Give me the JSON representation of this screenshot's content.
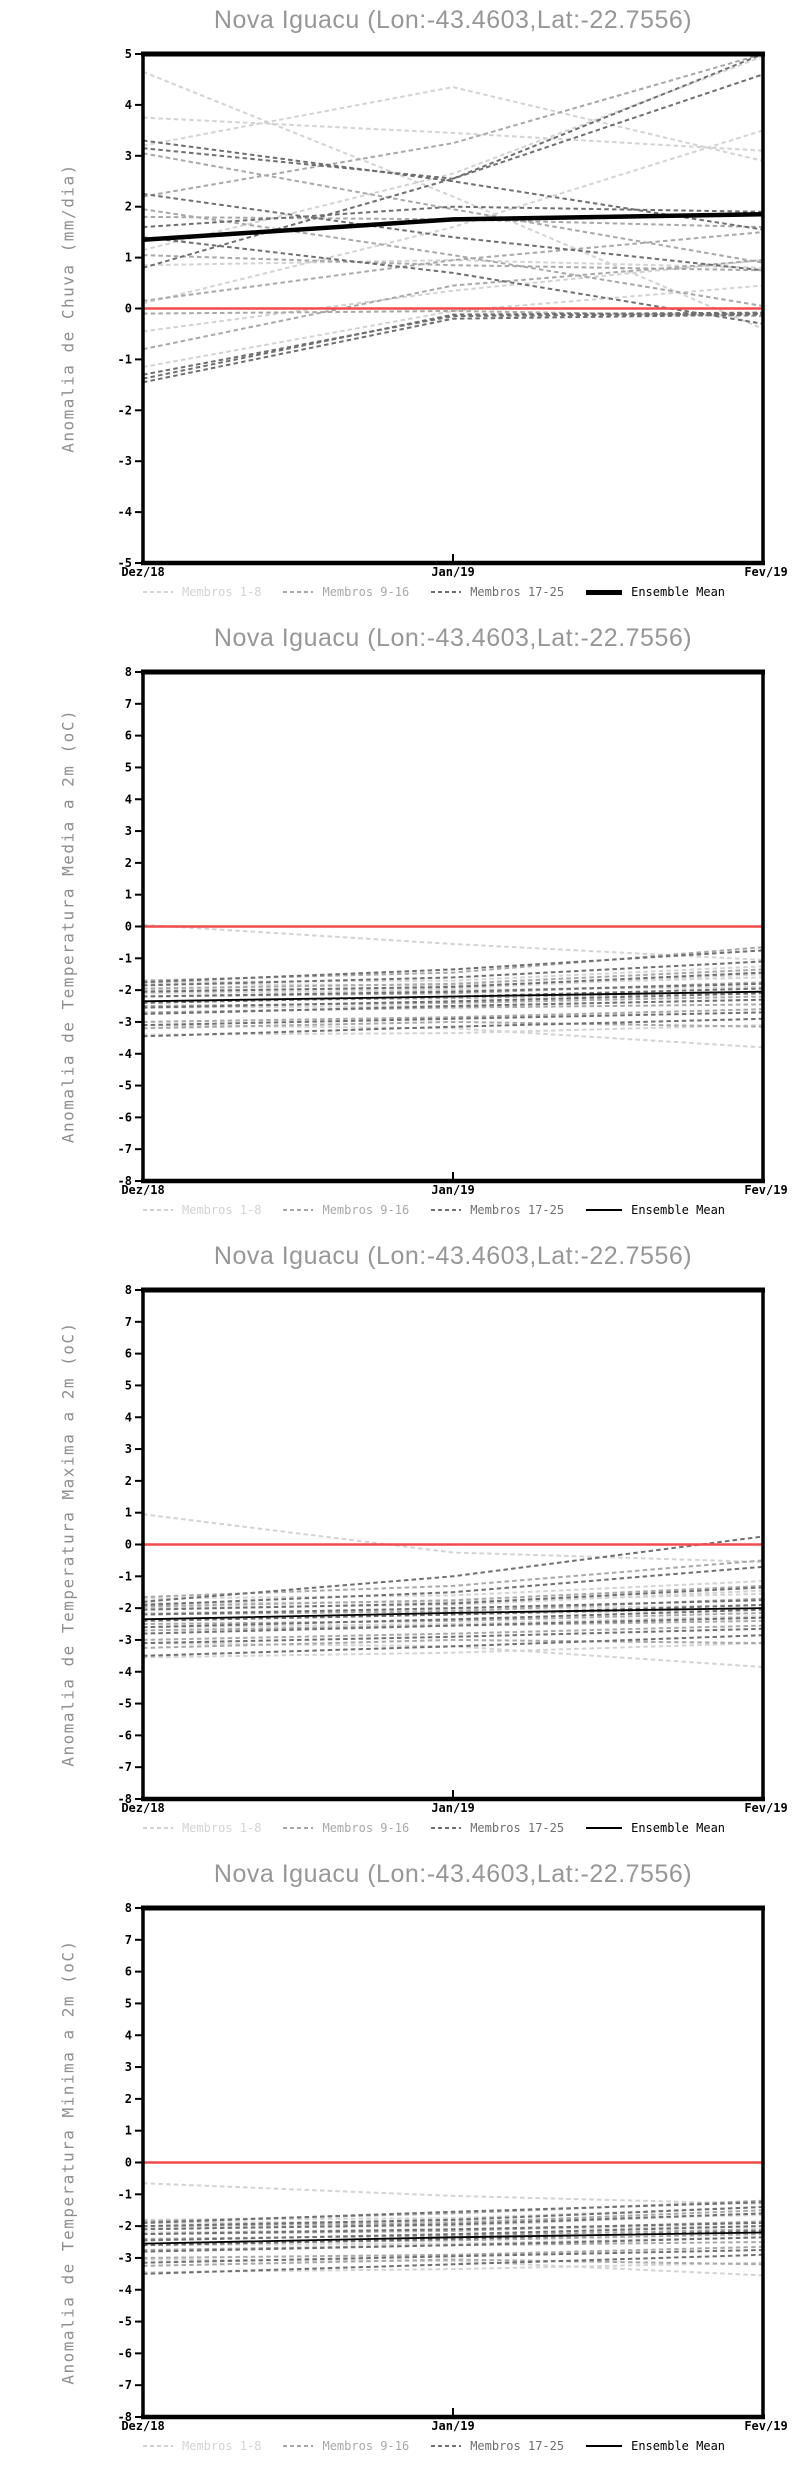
{
  "page": {
    "background": "#ffffff"
  },
  "style": {
    "frame_color": "#000000",
    "title_color": "#979797",
    "axis_label_color": "#8f8f8f",
    "tick_label_color": "#000000",
    "zero_line_color": "#f14b4b",
    "group_colors": [
      "#d3d3d3",
      "#a8a8a8",
      "#6f6f6f"
    ],
    "mean_color": "#000000"
  },
  "chart_data": [
    {
      "type": "line",
      "title": "Nova Iguacu (Lon:-43.4603,Lat:-22.7556)",
      "ylabel": "Anomalia de Chuva (mm/dia)",
      "x_categories": [
        "Dez/18",
        "Jan/19",
        "Fev/19"
      ],
      "ylim": [
        -5,
        5
      ],
      "ytick_step": 1,
      "grid": false,
      "legend_position": "bottom",
      "zero_line": {
        "value": 0,
        "color": "#f14b4b"
      },
      "groups": [
        {
          "name": "Membros 1-8",
          "color": "#d3d3d3",
          "style": "dashed",
          "members": [
            [
              4.65,
              2.2,
              -0.4
            ],
            [
              3.75,
              3.45,
              3.1
            ],
            [
              1.15,
              2.65,
              4.95
            ],
            [
              0.85,
              0.95,
              0.8
            ],
            [
              0.1,
              1.6,
              3.5
            ],
            [
              -0.45,
              0.35,
              0.95
            ],
            [
              -1.15,
              -0.05,
              0.45
            ],
            [
              3.2,
              4.35,
              2.9
            ]
          ]
        },
        {
          "name": "Membros 9-16",
          "color": "#a8a8a8",
          "style": "dashed",
          "members": [
            [
              2.2,
              3.25,
              5.0
            ],
            [
              1.95,
              1.05,
              0.05
            ],
            [
              1.8,
              1.75,
              1.6
            ],
            [
              1.05,
              0.85,
              0.75
            ],
            [
              0.15,
              0.95,
              1.5
            ],
            [
              -0.1,
              -0.05,
              -0.15
            ],
            [
              -0.8,
              0.45,
              0.95
            ],
            [
              3.05,
              1.95,
              0.9
            ]
          ]
        },
        {
          "name": "Membros 17-25",
          "color": "#6f6f6f",
          "style": "dashed",
          "members": [
            [
              3.3,
              2.5,
              1.55
            ],
            [
              3.15,
              2.55,
              4.6
            ],
            [
              2.25,
              1.4,
              0.75
            ],
            [
              1.6,
              2.0,
              1.9
            ],
            [
              1.4,
              0.7,
              -0.3
            ],
            [
              -1.3,
              -0.15,
              -0.1
            ],
            [
              -1.38,
              -0.12,
              -0.08
            ],
            [
              -1.45,
              -0.2,
              -0.12
            ],
            [
              0.8,
              2.55,
              5.0
            ]
          ]
        }
      ],
      "mean": {
        "name": "Ensemble Mean",
        "color": "#000000",
        "width": 4.5,
        "values": [
          1.35,
          1.75,
          1.85
        ]
      }
    },
    {
      "type": "line",
      "title": "Nova Iguacu (Lon:-43.4603,Lat:-22.7556)",
      "ylabel": "Anomalia de Temperatura Media a 2m (oC)",
      "x_categories": [
        "Dez/18",
        "Jan/19",
        "Fev/19"
      ],
      "ylim": [
        -8,
        8
      ],
      "ytick_step": 1,
      "grid": false,
      "legend_position": "bottom",
      "zero_line": {
        "value": 0,
        "color": "#f14b4b"
      },
      "groups": [
        {
          "name": "Membros 1-8",
          "color": "#d3d3d3",
          "style": "dashed",
          "members": [
            [
              0.05,
              -0.55,
              -1.05
            ],
            [
              -1.75,
              -1.7,
              -1.25
            ],
            [
              -1.8,
              -1.85,
              -1.6
            ],
            [
              -2.0,
              -1.95,
              -1.5
            ],
            [
              -2.1,
              -2.0,
              -1.9
            ],
            [
              -2.55,
              -2.5,
              -2.3
            ],
            [
              -3.1,
              -3.2,
              -3.8
            ],
            [
              -3.4,
              -3.35,
              -3.1
            ]
          ]
        },
        {
          "name": "Membros 9-16",
          "color": "#a8a8a8",
          "style": "dashed",
          "members": [
            [
              -1.7,
              -1.45,
              -0.65
            ],
            [
              -1.95,
              -1.8,
              -1.35
            ],
            [
              -2.2,
              -2.1,
              -1.75
            ],
            [
              -2.35,
              -2.25,
              -2.05
            ],
            [
              -2.5,
              -2.4,
              -2.2
            ],
            [
              -2.7,
              -2.55,
              -2.45
            ],
            [
              -3.0,
              -2.85,
              -2.6
            ],
            [
              -3.2,
              -3.0,
              -3.15
            ]
          ]
        },
        {
          "name": "Membros 17-25",
          "color": "#6f6f6f",
          "style": "dashed",
          "members": [
            [
              -1.75,
              -1.35,
              -0.75
            ],
            [
              -1.85,
              -1.6,
              -1.1
            ],
            [
              -2.05,
              -1.9,
              -1.45
            ],
            [
              -2.2,
              -2.05,
              -1.8
            ],
            [
              -2.4,
              -2.2,
              -1.95
            ],
            [
              -2.55,
              -2.35,
              -2.1
            ],
            [
              -2.75,
              -2.5,
              -2.3
            ],
            [
              -3.1,
              -2.9,
              -2.7
            ],
            [
              -3.45,
              -3.15,
              -2.9
            ]
          ]
        }
      ],
      "mean": {
        "name": "Ensemble Mean",
        "color": "#000000",
        "width": 1.8,
        "values": [
          -2.35,
          -2.2,
          -2.05
        ]
      }
    },
    {
      "type": "line",
      "title": "Nova Iguacu (Lon:-43.4603,Lat:-22.7556)",
      "ylabel": "Anomalia de Temperatura Maxima a 2m (oC)",
      "x_categories": [
        "Dez/18",
        "Jan/19",
        "Fev/19"
      ],
      "ylim": [
        -8,
        8
      ],
      "ytick_step": 1,
      "grid": false,
      "legend_position": "bottom",
      "zero_line": {
        "value": 0,
        "color": "#f14b4b"
      },
      "groups": [
        {
          "name": "Membros 1-8",
          "color": "#d3d3d3",
          "style": "dashed",
          "members": [
            [
              0.95,
              -0.25,
              -0.55
            ],
            [
              -1.7,
              -1.6,
              -1.15
            ],
            [
              -1.85,
              -1.8,
              -1.55
            ],
            [
              -2.0,
              -1.9,
              -1.45
            ],
            [
              -2.15,
              -2.05,
              -1.9
            ],
            [
              -2.6,
              -2.5,
              -2.25
            ],
            [
              -3.1,
              -3.2,
              -3.85
            ],
            [
              -3.55,
              -3.4,
              -3.1
            ]
          ]
        },
        {
          "name": "Membros 9-16",
          "color": "#a8a8a8",
          "style": "dashed",
          "members": [
            [
              -1.65,
              -1.3,
              -0.5
            ],
            [
              -1.95,
              -1.75,
              -1.3
            ],
            [
              -2.2,
              -2.1,
              -1.7
            ],
            [
              -2.35,
              -2.2,
              -2.0
            ],
            [
              -2.5,
              -2.4,
              -2.15
            ],
            [
              -2.7,
              -2.55,
              -2.4
            ],
            [
              -3.0,
              -2.8,
              -2.55
            ],
            [
              -3.25,
              -3.0,
              -3.1
            ]
          ]
        },
        {
          "name": "Membros 17-25",
          "color": "#6f6f6f",
          "style": "dashed",
          "members": [
            [
              -1.8,
              -1.0,
              0.25
            ],
            [
              -1.9,
              -1.5,
              -0.7
            ],
            [
              -2.05,
              -1.85,
              -1.35
            ],
            [
              -2.2,
              -2.0,
              -1.75
            ],
            [
              -2.4,
              -2.2,
              -1.9
            ],
            [
              -2.6,
              -2.35,
              -2.05
            ],
            [
              -2.8,
              -2.55,
              -2.3
            ],
            [
              -3.1,
              -2.9,
              -2.65
            ],
            [
              -3.5,
              -3.2,
              -2.85
            ]
          ]
        }
      ],
      "mean": {
        "name": "Ensemble Mean",
        "color": "#000000",
        "width": 1.8,
        "values": [
          -2.35,
          -2.15,
          -2.0
        ]
      }
    },
    {
      "type": "line",
      "title": "Nova Iguacu (Lon:-43.4603,Lat:-22.7556)",
      "ylabel": "Anomalia de Temperatura Minima a 2m (oC)",
      "x_categories": [
        "Dez/18",
        "Jan/19",
        "Fev/19"
      ],
      "ylim": [
        -8,
        8
      ],
      "ytick_step": 1,
      "grid": false,
      "legend_position": "bottom",
      "zero_line": {
        "value": 0,
        "color": "#f14b4b"
      },
      "groups": [
        {
          "name": "Membros 1-8",
          "color": "#d3d3d3",
          "style": "dashed",
          "members": [
            [
              -0.65,
              -1.05,
              -1.3
            ],
            [
              -1.8,
              -1.75,
              -1.4
            ],
            [
              -1.9,
              -1.85,
              -1.65
            ],
            [
              -2.05,
              -2.0,
              -1.6
            ],
            [
              -2.2,
              -2.1,
              -2.0
            ],
            [
              -2.6,
              -2.55,
              -2.35
            ],
            [
              -3.05,
              -3.1,
              -3.55
            ],
            [
              -3.45,
              -3.35,
              -3.15
            ]
          ]
        },
        {
          "name": "Membros 9-16",
          "color": "#a8a8a8",
          "style": "dashed",
          "members": [
            [
              -1.85,
              -1.6,
              -1.2
            ],
            [
              -2.0,
              -1.9,
              -1.5
            ],
            [
              -2.25,
              -2.15,
              -1.85
            ],
            [
              -2.4,
              -2.3,
              -2.1
            ],
            [
              -2.55,
              -2.45,
              -2.25
            ],
            [
              -2.75,
              -2.6,
              -2.5
            ],
            [
              -3.0,
              -2.9,
              -2.65
            ],
            [
              -3.25,
              -3.05,
              -3.2
            ]
          ]
        },
        {
          "name": "Membros 17-25",
          "color": "#6f6f6f",
          "style": "dashed",
          "members": [
            [
              -1.9,
              -1.55,
              -1.25
            ],
            [
              -2.0,
              -1.8,
              -1.4
            ],
            [
              -2.1,
              -1.95,
              -1.6
            ],
            [
              -2.25,
              -2.1,
              -1.9
            ],
            [
              -2.45,
              -2.25,
              -2.0
            ],
            [
              -2.6,
              -2.4,
              -2.15
            ],
            [
              -2.8,
              -2.6,
              -2.35
            ],
            [
              -3.15,
              -2.95,
              -2.75
            ],
            [
              -3.5,
              -3.2,
              -2.9
            ]
          ]
        }
      ],
      "mean": {
        "name": "Ensemble Mean",
        "color": "#000000",
        "width": 1.8,
        "values": [
          -2.55,
          -2.35,
          -2.2
        ]
      }
    }
  ]
}
